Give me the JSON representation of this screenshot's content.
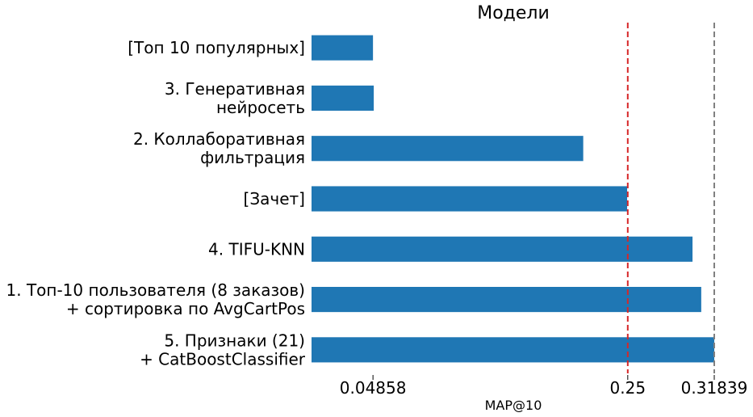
{
  "chart_data": {
    "type": "bar",
    "orientation": "horizontal",
    "title": "Модели",
    "xlabel": "MAP@10",
    "ylabel": "",
    "categories": [
      [
        "[Топ 10 популярных]"
      ],
      [
        "3. Генеративная",
        "нейросеть"
      ],
      [
        "2. Коллаборативная",
        "фильтрация"
      ],
      [
        "[Зачет]"
      ],
      [
        "4. TIFU-KNN"
      ],
      [
        "1. Топ-10 пользователя (8 заказов)",
        "+ сортировка по AvgCartPos"
      ],
      [
        "5. Признаки (21)",
        "+ CatBoostClassifier"
      ]
    ],
    "values": [
      0.04858,
      0.0492,
      0.2148,
      0.2495,
      0.3012,
      0.3081,
      0.31839
    ],
    "xticks": [
      "0.04858",
      "0.25",
      "0.31839"
    ],
    "xtick_values": [
      0.04858,
      0.25,
      0.31839
    ],
    "xlim": [
      0,
      0.31839
    ],
    "reference_lines": [
      {
        "value": 0.25,
        "color": "#d62728",
        "style": "dashed"
      },
      {
        "value": 0.31839,
        "color": "#808080",
        "style": "dashed"
      }
    ],
    "bar_color": "#1f77b4",
    "grid": false,
    "legend": "none"
  }
}
